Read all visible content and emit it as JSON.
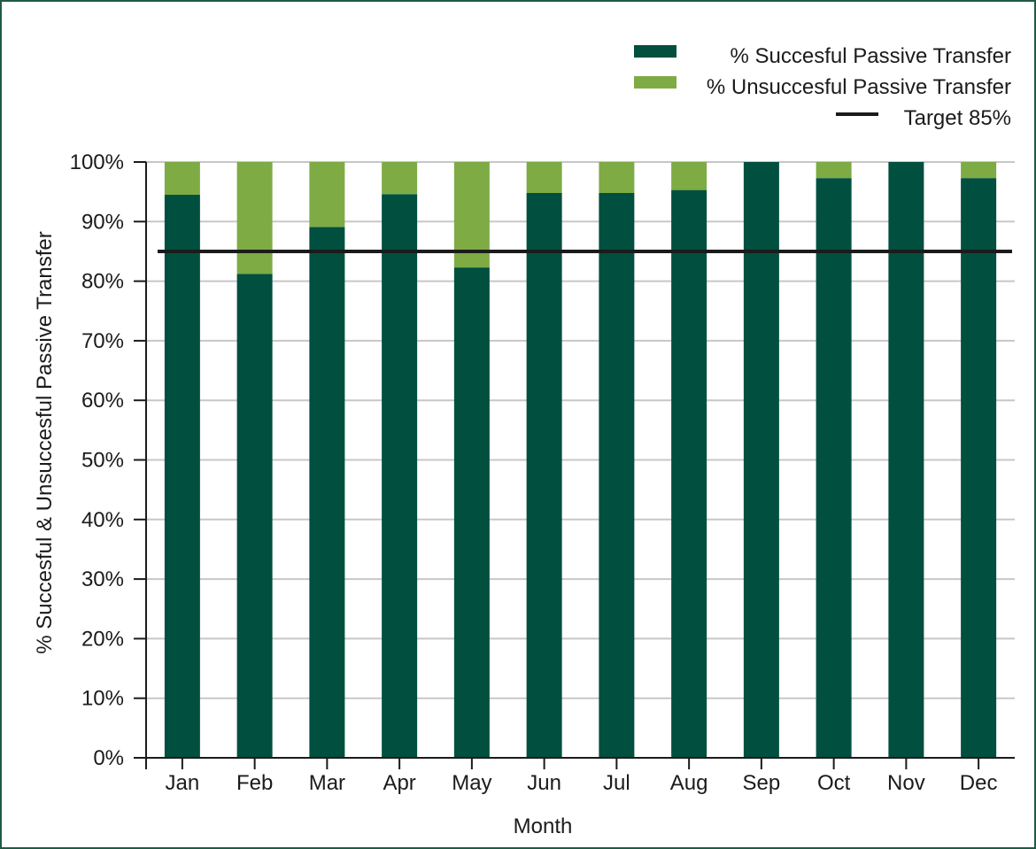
{
  "chart_data": {
    "type": "bar",
    "stacked": true,
    "categories": [
      "Jan",
      "Feb",
      "Mar",
      "Apr",
      "May",
      "Jun",
      "Jul",
      "Aug",
      "Sep",
      "Oct",
      "Nov",
      "Dec"
    ],
    "series": [
      {
        "name": "% Succesful Passive Transfer",
        "color": "#004f3f",
        "values": [
          94.5,
          81.2,
          89.1,
          94.6,
          82.3,
          94.8,
          94.8,
          95.3,
          100,
          97.3,
          100,
          97.3
        ]
      },
      {
        "name": "% Unsuccesful Passive Transfer",
        "color": "#7eab44",
        "values": [
          5.5,
          18.8,
          10.9,
          5.4,
          17.7,
          5.2,
          5.2,
          4.7,
          0,
          2.7,
          0,
          2.7
        ]
      }
    ],
    "target": {
      "label": "Target 85%",
      "value": 85,
      "color": "#1b1b1b"
    },
    "xlabel": "Month",
    "ylabel": "% Succesful & Unsuccesful Passive Transfer",
    "ylim": [
      0,
      100
    ],
    "yticks": [
      "0%",
      "10%",
      "20%",
      "30%",
      "40%",
      "50%",
      "60%",
      "70%",
      "80%",
      "90%",
      "100%"
    ],
    "grid": true,
    "legend_position": "top-right",
    "colors": {
      "grid": "#c7c7c7",
      "axis": "#1b1b1b",
      "border": "#1f5a46"
    }
  }
}
